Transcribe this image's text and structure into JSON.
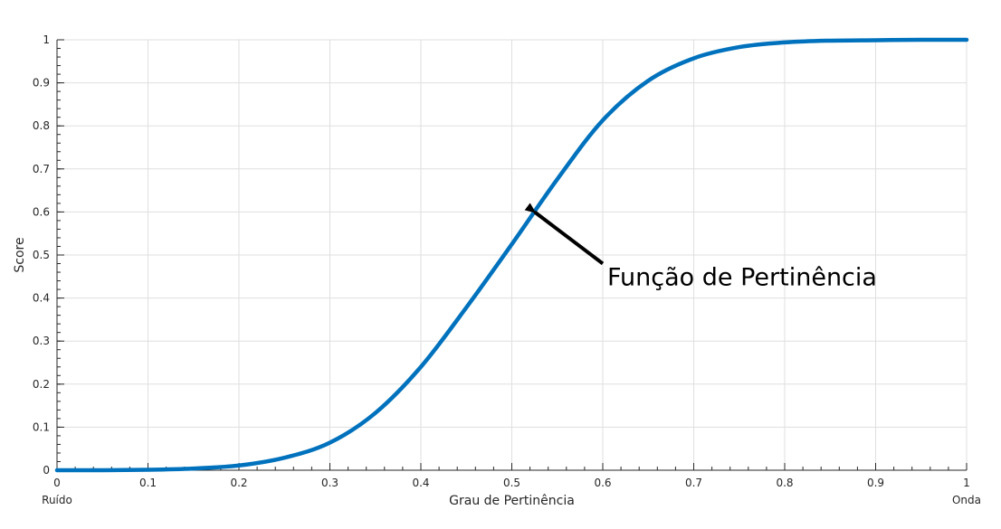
{
  "chart_data": {
    "type": "line",
    "title": "",
    "xlabel": "Grau de Pertinência",
    "ylabel": "Score",
    "xlim": [
      0,
      1
    ],
    "ylim": [
      0,
      1
    ],
    "x_ticks": [
      0,
      0.1,
      0.2,
      0.3,
      0.4,
      0.5,
      0.6,
      0.7,
      0.8,
      0.9,
      1
    ],
    "x_tick_labels": [
      "0",
      "0.1",
      "0.2",
      "0.3",
      "0.4",
      "0.5",
      "0.6",
      "0.7",
      "0.8",
      "0.9",
      "1"
    ],
    "y_ticks": [
      0,
      0.1,
      0.2,
      0.3,
      0.4,
      0.5,
      0.6,
      0.7,
      0.8,
      0.9,
      1
    ],
    "y_tick_labels": [
      "0",
      "0.1",
      "0.2",
      "0.3",
      "0.4",
      "0.5",
      "0.6",
      "0.7",
      "0.8",
      "0.9",
      "1"
    ],
    "x_end_labels": {
      "left": "Ruído",
      "right": "Onda"
    },
    "grid": true,
    "series": [
      {
        "color": "#0072BD",
        "x": [
          0,
          0.05,
          0.1,
          0.15,
          0.2,
          0.25,
          0.3,
          0.35,
          0.4,
          0.45,
          0.5,
          0.55,
          0.6,
          0.65,
          0.7,
          0.75,
          0.8,
          0.85,
          0.9,
          0.95,
          1
        ],
        "y": [
          0.0,
          0.0,
          0.001,
          0.004,
          0.011,
          0.029,
          0.064,
          0.133,
          0.24,
          0.378,
          0.525,
          0.676,
          0.813,
          0.905,
          0.957,
          0.983,
          0.994,
          0.998,
          0.999,
          1.0,
          1.0
        ]
      }
    ],
    "annotations": [
      {
        "text": "Função de Pertinência",
        "arrow_to": {
          "x": 0.525,
          "y": 0.6
        },
        "arrow_from": {
          "x": 0.6,
          "y": 0.48
        }
      }
    ]
  }
}
